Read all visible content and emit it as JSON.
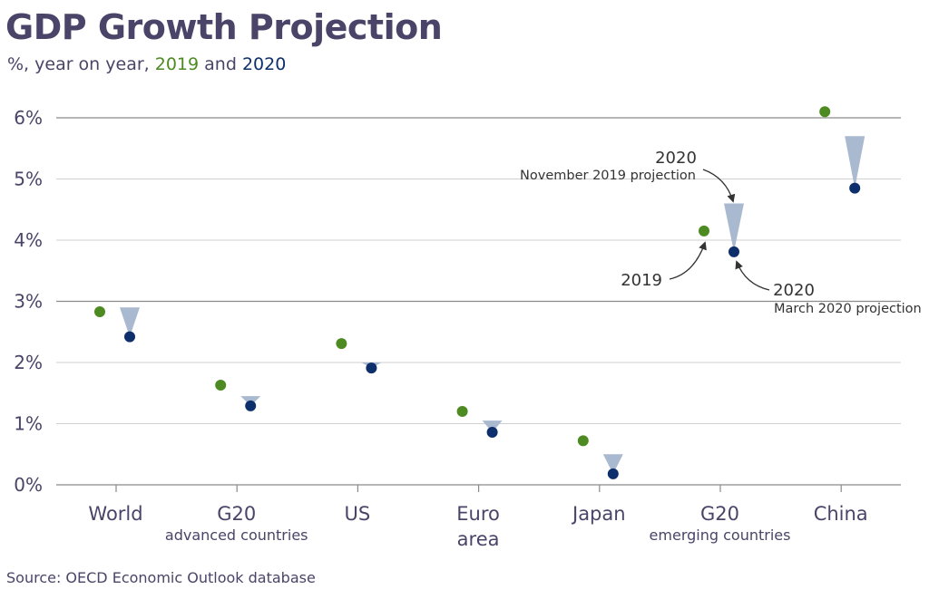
{
  "title": "GDP Growth Projection",
  "subtitle": {
    "prefix": "%, year on year,",
    "y2019": "2019",
    "conj": "and",
    "y2020": "2020"
  },
  "source": "Source: OECD Economic Outlook database",
  "colors": {
    "y2019": "#4e8a22",
    "y2020": "#0d2f6b",
    "revision": "#a9b9cf",
    "grid": "#d0d0d0",
    "axis_text": "#4a4468",
    "annotation": "#333333"
  },
  "annotations": {
    "nov_year": "2020",
    "nov_label": "November 2019 projection",
    "mar_year": "2020",
    "mar_label": "March 2020 projection",
    "y2019": "2019"
  },
  "chart_data": {
    "type": "scatter",
    "categories": [
      {
        "name": "World",
        "sub": ""
      },
      {
        "name": "G20",
        "sub": "advanced countries"
      },
      {
        "name": "US",
        "sub": ""
      },
      {
        "name": "Euro",
        "sub": "area"
      },
      {
        "name": "Japan",
        "sub": ""
      },
      {
        "name": "G20",
        "sub": "emerging countries"
      },
      {
        "name": "China",
        "sub": ""
      }
    ],
    "series": [
      {
        "name": "2019",
        "values": [
          2.83,
          1.63,
          2.31,
          1.2,
          0.72,
          4.15,
          6.1
        ]
      },
      {
        "name": "2020",
        "values": [
          2.42,
          1.29,
          1.91,
          0.86,
          0.18,
          3.81,
          4.85
        ]
      }
    ],
    "nov2019_projection_2020": [
      2.9,
      1.45,
      2.0,
      1.05,
      0.5,
      4.6,
      5.7
    ],
    "yticks": [
      "0%",
      "1%",
      "2%",
      "3%",
      "4%",
      "5%",
      "6%"
    ],
    "ylim": [
      0,
      6
    ],
    "grid": true
  }
}
